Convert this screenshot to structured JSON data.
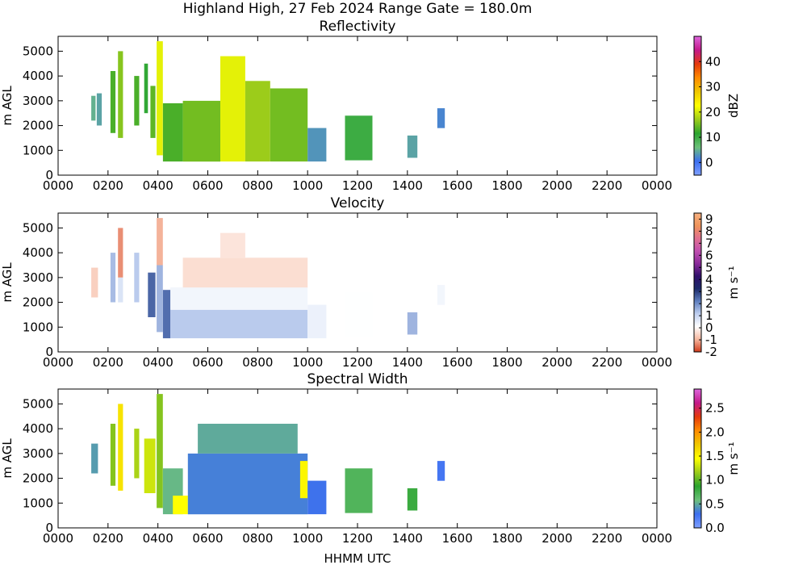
{
  "figure": {
    "suptitle": "Highland High, 27 Feb 2024 Range Gate = 180.0m",
    "xlabel": "HHMM UTC"
  },
  "chart_data": [
    {
      "type": "heatmap",
      "title": "Reflectivity",
      "ylabel": "m AGL",
      "xlabel": "",
      "x_ticks": [
        "0000",
        "0200",
        "0400",
        "0600",
        "0800",
        "1000",
        "1200",
        "1400",
        "1600",
        "1800",
        "2000",
        "2200",
        "0000"
      ],
      "y_ticks": [
        "0",
        "1000",
        "2000",
        "3000",
        "4000",
        "5000"
      ],
      "xlim_hours": [
        0,
        24
      ],
      "ylim": [
        0,
        5600
      ],
      "colorbar": {
        "label": "dBZ",
        "min": -5,
        "max": 50,
        "ticks": [
          {
            "v": 0,
            "t": "0"
          },
          {
            "v": 10,
            "t": "10"
          },
          {
            "v": 20,
            "t": "20"
          },
          {
            "v": 30,
            "t": "30"
          },
          {
            "v": 40,
            "t": "40"
          }
        ],
        "colors": [
          "#7fa0ff",
          "#3c6ff0",
          "#6cc07a",
          "#2ba42e",
          "#9ccc1a",
          "#ffff00",
          "#f0c800",
          "#ff8c00",
          "#e53a0c",
          "#c41a8a",
          "#dd66dd"
        ]
      },
      "cells": [
        {
          "x": [
            1.33,
            1.5
          ],
          "y": [
            2200,
            3200
          ],
          "v": 5
        },
        {
          "x": [
            1.55,
            1.75
          ],
          "y": [
            2000,
            3300
          ],
          "v": 4
        },
        {
          "x": [
            2.1,
            2.3
          ],
          "y": [
            1700,
            4200
          ],
          "v": 13
        },
        {
          "x": [
            2.4,
            2.6
          ],
          "y": [
            1500,
            5000
          ],
          "v": 16
        },
        {
          "x": [
            3.05,
            3.25
          ],
          "y": [
            2000,
            4000
          ],
          "v": 13
        },
        {
          "x": [
            3.45,
            3.6
          ],
          "y": [
            2500,
            4500
          ],
          "v": 11
        },
        {
          "x": [
            3.7,
            3.9
          ],
          "y": [
            1500,
            3600
          ],
          "v": 14
        },
        {
          "x": [
            3.95,
            4.2
          ],
          "y": [
            800,
            5400
          ],
          "v": 21
        },
        {
          "x": [
            4.2,
            5.0
          ],
          "y": [
            550,
            2900
          ],
          "v": 13
        },
        {
          "x": [
            5.0,
            6.5
          ],
          "y": [
            550,
            3000
          ],
          "v": 15
        },
        {
          "x": [
            6.5,
            7.5
          ],
          "y": [
            550,
            4800
          ],
          "v": 21
        },
        {
          "x": [
            7.5,
            8.5
          ],
          "y": [
            550,
            3800
          ],
          "v": 17
        },
        {
          "x": [
            8.5,
            10.0
          ],
          "y": [
            550,
            3500
          ],
          "v": 15
        },
        {
          "x": [
            10.0,
            10.75
          ],
          "y": [
            550,
            1900
          ],
          "v": 3
        },
        {
          "x": [
            11.5,
            12.6
          ],
          "y": [
            600,
            2400
          ],
          "v": 10
        },
        {
          "x": [
            14.0,
            14.4
          ],
          "y": [
            700,
            1600
          ],
          "v": 4
        },
        {
          "x": [
            15.2,
            15.5
          ],
          "y": [
            1900,
            2700
          ],
          "v": 2
        }
      ]
    },
    {
      "type": "heatmap",
      "title": "Velocity",
      "ylabel": "m AGL",
      "xlabel": "",
      "x_ticks": [
        "0000",
        "0200",
        "0400",
        "0600",
        "0800",
        "1000",
        "1200",
        "1400",
        "1600",
        "1800",
        "2000",
        "2200",
        "0000"
      ],
      "y_ticks": [
        "0",
        "1000",
        "2000",
        "3000",
        "4000",
        "5000"
      ],
      "xlim_hours": [
        0,
        24
      ],
      "ylim": [
        0,
        5600
      ],
      "colorbar": {
        "label": "m s⁻¹",
        "min": -2,
        "max": 9.5,
        "ticks": [
          {
            "v": -2,
            "t": "-2"
          },
          {
            "v": -1,
            "t": "-1"
          },
          {
            "v": 0,
            "t": "0"
          },
          {
            "v": 1,
            "t": "1"
          },
          {
            "v": 2,
            "t": "2"
          },
          {
            "v": 3,
            "t": "3"
          },
          {
            "v": 4,
            "t": "4"
          },
          {
            "v": 5,
            "t": "5"
          },
          {
            "v": 6,
            "t": "6"
          },
          {
            "v": 7,
            "t": "7"
          },
          {
            "v": 8,
            "t": "8"
          },
          {
            "v": 9,
            "t": "9"
          }
        ],
        "colors": [
          "#d03a1a",
          "#f6b8a0",
          "#ffffff",
          "#c0d0f0",
          "#6080c0",
          "#1c2a6a",
          "#30106a",
          "#8a2a9a",
          "#c04fb0",
          "#e07090",
          "#f0945a",
          "#f6b080"
        ]
      },
      "cells": [
        {
          "x": [
            1.33,
            1.6
          ],
          "y": [
            2200,
            3400
          ],
          "v": -0.6
        },
        {
          "x": [
            2.1,
            2.3
          ],
          "y": [
            2000,
            4000
          ],
          "v": 1.4
        },
        {
          "x": [
            2.4,
            2.6
          ],
          "y": [
            3000,
            5000
          ],
          "v": -1.3
        },
        {
          "x": [
            2.4,
            2.6
          ],
          "y": [
            2000,
            3000
          ],
          "v": 0.7
        },
        {
          "x": [
            3.05,
            3.25
          ],
          "y": [
            2000,
            4000
          ],
          "v": 1.2
        },
        {
          "x": [
            3.6,
            3.9
          ],
          "y": [
            1400,
            3200
          ],
          "v": 2.5
        },
        {
          "x": [
            3.95,
            4.2
          ],
          "y": [
            3500,
            5400
          ],
          "v": -1.0
        },
        {
          "x": [
            3.95,
            4.2
          ],
          "y": [
            800,
            3500
          ],
          "v": 1.5
        },
        {
          "x": [
            4.2,
            4.5
          ],
          "y": [
            550,
            2500
          ],
          "v": 2.4
        },
        {
          "x": [
            4.5,
            10.0
          ],
          "y": [
            550,
            1700
          ],
          "v": 1.2
        },
        {
          "x": [
            4.5,
            10.0
          ],
          "y": [
            1700,
            2600
          ],
          "v": 0.3
        },
        {
          "x": [
            5.0,
            10.0
          ],
          "y": [
            2600,
            3800
          ],
          "v": -0.4
        },
        {
          "x": [
            6.5,
            7.5
          ],
          "y": [
            3800,
            4800
          ],
          "v": -0.3
        },
        {
          "x": [
            10.0,
            10.75
          ],
          "y": [
            550,
            1900
          ],
          "v": 0.4
        },
        {
          "x": [
            11.5,
            12.6
          ],
          "y": [
            600,
            2400
          ],
          "v": 0.1
        },
        {
          "x": [
            14.0,
            14.4
          ],
          "y": [
            700,
            1600
          ],
          "v": 1.5
        },
        {
          "x": [
            15.2,
            15.5
          ],
          "y": [
            1900,
            2700
          ],
          "v": 0.3
        }
      ]
    },
    {
      "type": "heatmap",
      "title": "Spectral Width",
      "ylabel": "m AGL",
      "xlabel": "HHMM UTC",
      "x_ticks": [
        "0000",
        "0200",
        "0400",
        "0600",
        "0800",
        "1000",
        "1200",
        "1400",
        "1600",
        "1800",
        "2000",
        "2200",
        "0000"
      ],
      "y_ticks": [
        "0",
        "1000",
        "2000",
        "3000",
        "4000",
        "5000"
      ],
      "xlim_hours": [
        0,
        24
      ],
      "ylim": [
        0,
        5600
      ],
      "colorbar": {
        "label": "m s⁻¹",
        "min": 0,
        "max": 2.9,
        "ticks": [
          {
            "v": 0,
            "t": "0.0"
          },
          {
            "v": 0.5,
            "t": "0.5"
          },
          {
            "v": 1.0,
            "t": "1.0"
          },
          {
            "v": 1.5,
            "t": "1.5"
          },
          {
            "v": 2.0,
            "t": "2.0"
          },
          {
            "v": 2.5,
            "t": "2.5"
          }
        ],
        "colors": [
          "#7fa0ff",
          "#3c6ff0",
          "#6cc07a",
          "#2ba42e",
          "#9ccc1a",
          "#ffff00",
          "#f0c800",
          "#ff8c00",
          "#e53a0c",
          "#c41a8a",
          "#dd66dd"
        ]
      },
      "cells": [
        {
          "x": [
            1.33,
            1.6
          ],
          "y": [
            2200,
            3400
          ],
          "v": 0.45
        },
        {
          "x": [
            2.1,
            2.3
          ],
          "y": [
            1700,
            4200
          ],
          "v": 1.1
        },
        {
          "x": [
            2.4,
            2.6
          ],
          "y": [
            1500,
            5000
          ],
          "v": 1.6
        },
        {
          "x": [
            3.05,
            3.25
          ],
          "y": [
            2000,
            4000
          ],
          "v": 1.2
        },
        {
          "x": [
            3.45,
            3.9
          ],
          "y": [
            1400,
            3600
          ],
          "v": 1.3
        },
        {
          "x": [
            3.95,
            4.2
          ],
          "y": [
            800,
            5400
          ],
          "v": 1.1
        },
        {
          "x": [
            4.2,
            5.0
          ],
          "y": [
            550,
            2400
          ],
          "v": 0.55
        },
        {
          "x": [
            4.6,
            5.2
          ],
          "y": [
            550,
            1300
          ],
          "v": 1.45
        },
        {
          "x": [
            5.2,
            10.0
          ],
          "y": [
            550,
            3000
          ],
          "v": 0.35
        },
        {
          "x": [
            5.6,
            9.6
          ],
          "y": [
            3000,
            4200
          ],
          "v": 0.5
        },
        {
          "x": [
            9.7,
            10.0
          ],
          "y": [
            1200,
            2700
          ],
          "v": 1.5
        },
        {
          "x": [
            10.0,
            10.75
          ],
          "y": [
            550,
            1900
          ],
          "v": 0.3
        },
        {
          "x": [
            11.5,
            12.6
          ],
          "y": [
            600,
            2400
          ],
          "v": 0.7
        },
        {
          "x": [
            14.0,
            14.4
          ],
          "y": [
            700,
            1600
          ],
          "v": 0.8
        },
        {
          "x": [
            15.2,
            15.5
          ],
          "y": [
            1900,
            2700
          ],
          "v": 0.25
        }
      ]
    }
  ]
}
